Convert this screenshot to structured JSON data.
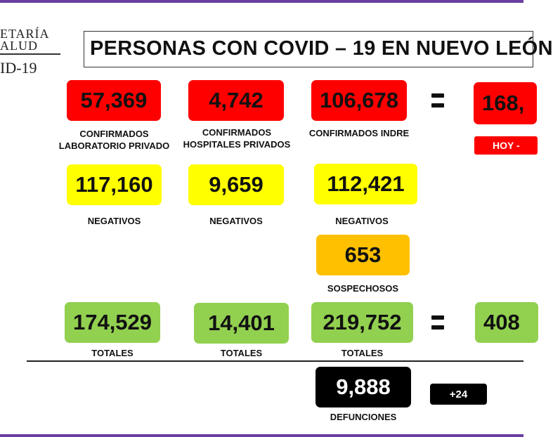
{
  "logo": {
    "line1": "ETARÍA",
    "line2": "ALUD",
    "line3": "ID-19"
  },
  "title": "PERSONAS CON COVID – 19 EN NUEVO LEÓN",
  "confirmed": {
    "private_lab": {
      "value": "57,369",
      "label_line1": "CONFIRMADOS",
      "label_line2": "LABORATORIO PRIVADO"
    },
    "private_hospitals": {
      "value": "4,742",
      "label_line1": "CONFIRMADOS",
      "label_line2": "HOSPITALES PRIVADOS"
    },
    "indre": {
      "value": "106,678",
      "label_line1": "CONFIRMADOS INDRE"
    },
    "total": {
      "value": "168,",
      "today_label": "HOY -"
    }
  },
  "negatives": {
    "private_lab": {
      "value": "117,160",
      "label": "NEGATIVOS"
    },
    "private_hospitals": {
      "value": "9,659",
      "label": "NEGATIVOS"
    },
    "indre": {
      "value": "112,421",
      "label": "NEGATIVOS"
    }
  },
  "suspects": {
    "value": "653",
    "label": "SOSPECHOSOS"
  },
  "totals": {
    "private_lab": {
      "value": "174,529",
      "label": "TOTALES"
    },
    "private_hospitals": {
      "value": "14,401",
      "label": "TOTALES"
    },
    "indre": {
      "value": "219,752",
      "label": "TOTALES"
    },
    "grand": {
      "value": "408"
    }
  },
  "deaths": {
    "value": "9,888",
    "label": "DEFUNCIONES",
    "delta": "+24"
  },
  "colors": {
    "confirmed": "#ff0000",
    "negative": "#ffff00",
    "suspect": "#ffc000",
    "total": "#92d050",
    "deaths": "#000000",
    "frame": "#6a3fa0"
  }
}
